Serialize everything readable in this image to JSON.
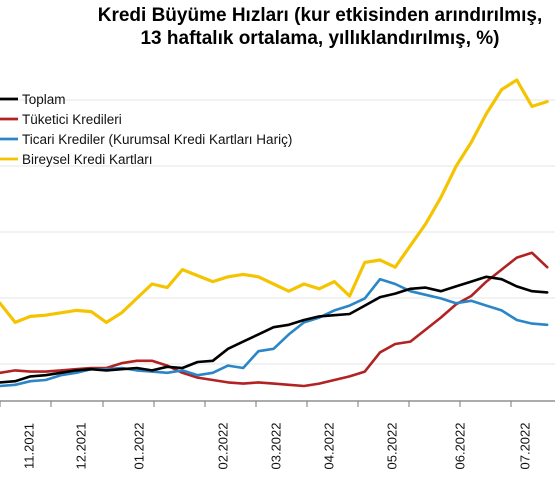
{
  "chart_data": {
    "type": "line",
    "title": "Kredi Büyüme Hızları (kur etkisinden arındırılmış,",
    "subtitle": "13 haftalık ortalama, yıllıklandırılmış, %)",
    "x_tick_labels": [
      "11.2021",
      "12.2021",
      "01.2022",
      "02.2022",
      "03.2022",
      "04.2022",
      "05.2022",
      "06.2022",
      "07.2022"
    ],
    "grid": "horizontal",
    "legend_position": "top-left",
    "xlabel": "",
    "ylabel": "",
    "series": [
      {
        "name": "Toplam",
        "color": "#000000",
        "values": [
          8,
          9,
          13,
          14,
          16,
          18,
          19,
          18,
          19,
          20,
          18,
          21,
          20,
          25,
          26,
          36,
          42,
          48,
          54,
          56,
          60,
          63,
          64,
          65,
          72,
          79,
          82,
          86,
          87,
          84,
          88,
          92,
          96,
          94,
          88,
          84,
          83
        ]
      },
      {
        "name": "Tüketici Kredileri",
        "color": "#b22222",
        "values": [
          16,
          18,
          17,
          17,
          18,
          19,
          20,
          20,
          24,
          26,
          26,
          22,
          16,
          12,
          10,
          8,
          7,
          8,
          7,
          6,
          5,
          7,
          10,
          13,
          17,
          33,
          40,
          42,
          52,
          62,
          73,
          80,
          92,
          102,
          112,
          116,
          104
        ]
      },
      {
        "name": "Ticari Krediler (Kurumsal Kredi Kartları Hariç)",
        "color": "#2a86c6",
        "values": [
          5,
          6,
          9,
          10,
          14,
          16,
          19,
          19,
          20,
          18,
          17,
          16,
          18,
          14,
          16,
          22,
          20,
          34,
          36,
          48,
          58,
          62,
          68,
          72,
          78,
          94,
          90,
          84,
          81,
          78,
          74,
          76,
          72,
          68,
          60,
          57,
          56
        ]
      },
      {
        "name": "Bireysel Kredi Kartları",
        "color": "#f5c400",
        "values": [
          74,
          58,
          63,
          64,
          66,
          68,
          67,
          58,
          66,
          78,
          90,
          87,
          102,
          97,
          92,
          96,
          98,
          96,
          90,
          84,
          90,
          86,
          92,
          80,
          108,
          110,
          104,
          122,
          140,
          162,
          188,
          208,
          232,
          252,
          260,
          238,
          242
        ]
      }
    ]
  }
}
